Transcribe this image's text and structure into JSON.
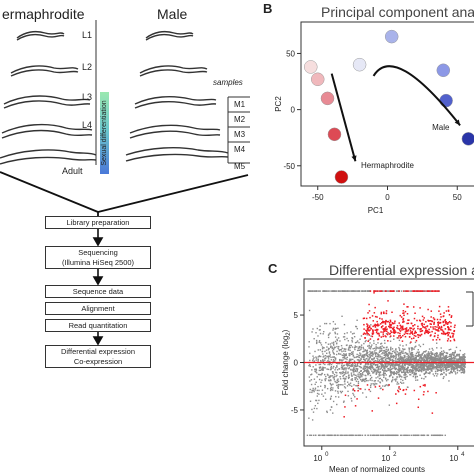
{
  "panelA": {
    "col_hermaphrodite": "ermaphrodite",
    "col_male": "Male",
    "stages": [
      "L1",
      "L2",
      "L3",
      "L4",
      "Adult"
    ],
    "gradient_label": "Sexual differentiation",
    "samples_title": "samples",
    "samples": [
      "M1",
      "M2",
      "M3",
      "M4",
      "M5"
    ],
    "steps": [
      [
        "Library preparation"
      ],
      [
        "Sequencing",
        "(Illumina HiSeq 2500)"
      ],
      [
        "Sequence data"
      ],
      [
        "Alignment"
      ],
      [
        "Read quantitation"
      ],
      [
        "Differential expression",
        "Co-expression"
      ]
    ]
  },
  "panelB": {
    "letter": "B",
    "title": "Principal component analys",
    "annot_male": "Male",
    "annot_herm": "Hermaphrodite"
  },
  "panelC": {
    "letter": "C",
    "title": "Differential expression ana",
    "xticks": [
      "10",
      "10",
      "10",
      "10"
    ],
    "xtick_exps": [
      "0",
      "2",
      "4"
    ]
  },
  "chart_data": [
    {
      "type": "scatter",
      "title": "Principal component analys",
      "xlabel": "PC1",
      "ylabel": "PC2",
      "xlim": [
        -62,
        62
      ],
      "ylim": [
        -68,
        78
      ],
      "xticks": [
        -50,
        0,
        50
      ],
      "yticks": [
        -50,
        0,
        50
      ],
      "series": [
        {
          "name": "Hermaphrodite",
          "points": [
            {
              "x": -55,
              "y": 38,
              "color": "#f6dede"
            },
            {
              "x": -50,
              "y": 27,
              "color": "#f0b8bc"
            },
            {
              "x": -43,
              "y": 10,
              "color": "#e88a94"
            },
            {
              "x": -38,
              "y": -22,
              "color": "#dd4a55"
            },
            {
              "x": -33,
              "y": -60,
              "color": "#d01010"
            }
          ]
        },
        {
          "name": "Male",
          "points": [
            {
              "x": -20,
              "y": 40,
              "color": "#e6e8f6"
            },
            {
              "x": 3,
              "y": 65,
              "color": "#a9b3ea"
            },
            {
              "x": 40,
              "y": 35,
              "color": "#8c98e6"
            },
            {
              "x": 42,
              "y": 8,
              "color": "#5160cc"
            },
            {
              "x": 58,
              "y": -26,
              "color": "#2a35a8"
            }
          ]
        }
      ],
      "annotations": [
        "Male",
        "Hermaphrodite"
      ]
    },
    {
      "type": "scatter",
      "title": "Differential expression ana",
      "xlabel": "Mean of normalized counts",
      "ylabel": "Fold change (log2)",
      "xscale": "log",
      "xlim": [
        0.3,
        30000
      ],
      "ylim": [
        -8.8,
        8.8
      ],
      "yticks": [
        -5,
        0,
        5
      ],
      "xticks": [
        1,
        100,
        10000
      ],
      "series": [
        {
          "name": "not significant",
          "color": "#8c8c8c"
        },
        {
          "name": "significant",
          "color": "#ee1c25"
        }
      ],
      "hline": {
        "y": 0,
        "color": "#ee1c25"
      }
    }
  ]
}
